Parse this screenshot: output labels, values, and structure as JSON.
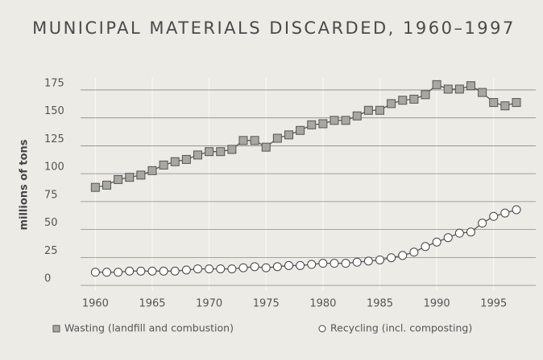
{
  "chart_data": {
    "type": "line",
    "title": "MUNICIPAL MATERIALS DISCARDED, 1960–1997",
    "y_label": "millions of tons",
    "x": [
      1960,
      1961,
      1962,
      1963,
      1964,
      1965,
      1966,
      1967,
      1968,
      1969,
      1970,
      1971,
      1972,
      1973,
      1974,
      1975,
      1976,
      1977,
      1978,
      1979,
      1980,
      1981,
      1982,
      1983,
      1984,
      1985,
      1986,
      1987,
      1988,
      1989,
      1990,
      1991,
      1992,
      1993,
      1994,
      1995,
      1996,
      1997
    ],
    "series": [
      {
        "name": "Wasting (landfill and combustion)",
        "marker": "square",
        "color": "#a8a8a2",
        "values": [
          82,
          84,
          89,
          91,
          93,
          97,
          102,
          105,
          107,
          111,
          114,
          114,
          116,
          124,
          124,
          118,
          126,
          129,
          133,
          138,
          139,
          142,
          142,
          146,
          151,
          151,
          157,
          160,
          161,
          165,
          174,
          170,
          170,
          173,
          167,
          158,
          155,
          158
        ]
      },
      {
        "name": "Recycling (incl. composting)",
        "marker": "circle",
        "color": "#ffffff",
        "values": [
          6,
          6,
          6,
          7,
          7,
          7,
          7,
          7,
          8,
          9,
          9,
          9,
          9,
          10,
          11,
          10,
          11,
          12,
          12,
          13,
          14,
          14,
          14,
          15,
          16,
          17,
          19,
          21,
          24,
          29,
          33,
          37,
          41,
          42,
          50,
          56,
          59,
          62
        ]
      }
    ],
    "xlim": [
      1958.7,
      1998.7
    ],
    "xticks": [
      1960,
      1965,
      1970,
      1975,
      1980,
      1985,
      1990,
      1995
    ],
    "ylim": [
      -10,
      180
    ],
    "yticks": [
      0,
      25,
      50,
      75,
      100,
      125,
      150,
      175
    ],
    "grid": true
  }
}
